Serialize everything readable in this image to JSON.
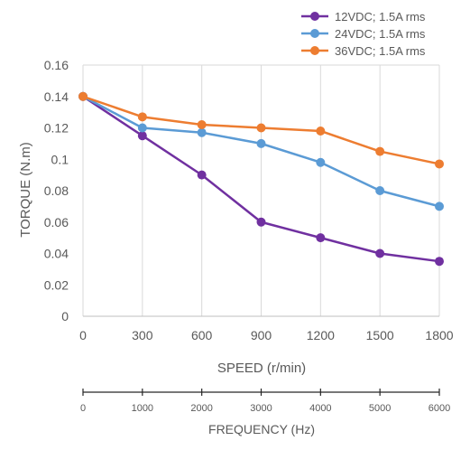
{
  "chart_data": {
    "type": "line",
    "xlabel": "SPEED (r/min)",
    "ylabel": "TORQUE (N.m)",
    "x": [
      0,
      300,
      600,
      900,
      1200,
      1500,
      1800
    ],
    "x_tick_labels": [
      "0",
      "300",
      "600",
      "900",
      "1200",
      "1500",
      "1800"
    ],
    "xlim": [
      0,
      1800
    ],
    "ylim": [
      0,
      0.16
    ],
    "y_ticks": [
      0,
      0.02,
      0.04,
      0.06,
      0.08,
      0.1,
      0.12,
      0.14,
      0.16
    ],
    "y_tick_labels": [
      "0",
      "0.02",
      "0.04",
      "0.06",
      "0.08",
      "0.1",
      "0.12",
      "0.14",
      "0.16"
    ],
    "grid": "vertical",
    "legend_position": "top-right",
    "series": [
      {
        "name": "12VDC; 1.5A rms",
        "color": "#7030A0",
        "values": [
          0.14,
          0.115,
          0.09,
          0.06,
          0.05,
          0.04,
          0.035
        ]
      },
      {
        "name": "24VDC; 1.5A rms",
        "color": "#5B9BD5",
        "values": [
          0.14,
          0.12,
          0.117,
          0.11,
          0.098,
          0.08,
          0.07
        ]
      },
      {
        "name": "36VDC; 1.5A rms",
        "color": "#ED7D31",
        "values": [
          0.14,
          0.127,
          0.122,
          0.12,
          0.118,
          0.105,
          0.097
        ]
      }
    ],
    "secondary_axis": {
      "label": "FREQUENCY (Hz)",
      "ticks": [
        0,
        1000,
        2000,
        3000,
        4000,
        5000,
        6000
      ],
      "tick_labels": [
        "0",
        "1000",
        "2000",
        "3000",
        "4000",
        "5000",
        "6000"
      ],
      "range": [
        0,
        6000
      ]
    }
  }
}
